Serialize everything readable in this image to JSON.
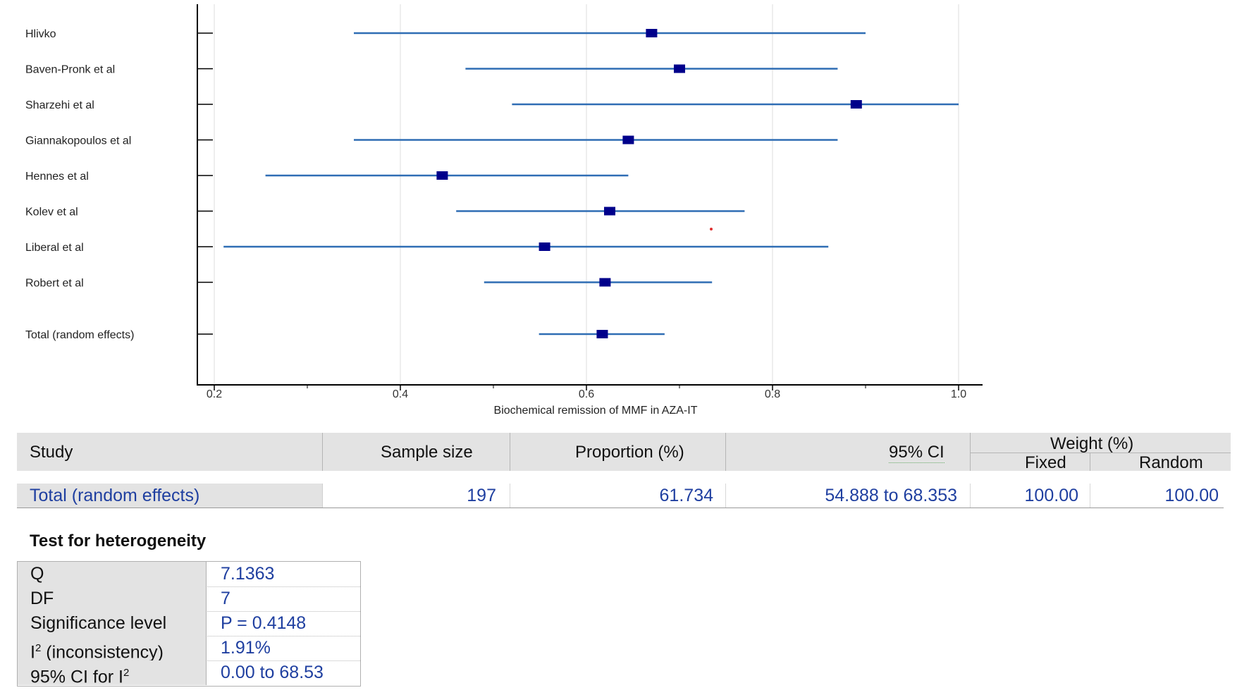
{
  "chart_data": {
    "type": "forest",
    "xlabel": "Biochemical remission of MMF in AZA-IT",
    "xlim": [
      0.2,
      1.0
    ],
    "xticks": [
      "0.2",
      "0.4",
      "0.6",
      "0.8",
      "1.0"
    ],
    "grid": true,
    "studies": [
      {
        "name": "Hlivko",
        "estimate": 0.67,
        "lower": 0.35,
        "upper": 0.9
      },
      {
        "name": "Baven-Pronk et al",
        "estimate": 0.7,
        "lower": 0.47,
        "upper": 0.87
      },
      {
        "name": "Sharzehi et al",
        "estimate": 0.89,
        "lower": 0.52,
        "upper": 1.0
      },
      {
        "name": "Giannakopoulos et al",
        "estimate": 0.645,
        "lower": 0.35,
        "upper": 0.87
      },
      {
        "name": "Hennes et al",
        "estimate": 0.445,
        "lower": 0.255,
        "upper": 0.645
      },
      {
        "name": "Kolev et al",
        "estimate": 0.625,
        "lower": 0.46,
        "upper": 0.77
      },
      {
        "name": "Liberal et al",
        "estimate": 0.555,
        "lower": 0.21,
        "upper": 0.86
      },
      {
        "name": "Robert et al",
        "estimate": 0.62,
        "lower": 0.49,
        "upper": 0.735
      }
    ],
    "total": {
      "name": "Total (random effects)",
      "estimate": 0.617,
      "lower": 0.549,
      "upper": 0.684
    }
  },
  "table": {
    "headers": {
      "study": "Study",
      "sample_size": "Sample size",
      "proportion": "Proportion (%)",
      "ci": "95% CI",
      "weight": "Weight (%)",
      "fixed": "Fixed",
      "random": "Random"
    },
    "row": {
      "study": "Total (random effects)",
      "sample_size": "197",
      "proportion": "61.734",
      "ci": "54.888 to 68.353",
      "fixed": "100.00",
      "random": "100.00"
    }
  },
  "heterogeneity": {
    "title": "Test for heterogeneity",
    "rows": [
      {
        "key": "Q",
        "value": "7.1363"
      },
      {
        "key": "DF",
        "value": "7"
      },
      {
        "key": "Significance level",
        "value": "P = 0.4148"
      },
      {
        "key": "I",
        "key_sup": "2",
        "key_tail": " (inconsistency)",
        "value": "1.91%"
      },
      {
        "key": "95% CI for I",
        "key_sup": "2",
        "key_tail": "",
        "value": "0.00 to 68.53"
      }
    ]
  },
  "colors": {
    "ci_line": "#2f6db4",
    "marker": "#00008b",
    "grid": "#dddddd",
    "table_text": "#1f3fa0",
    "header_bg": "#e3e3e3"
  }
}
